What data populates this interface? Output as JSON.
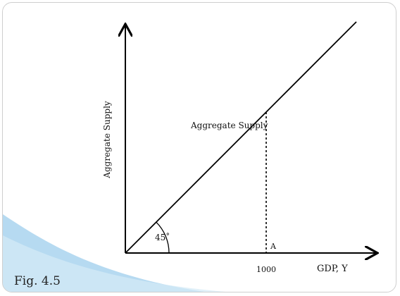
{
  "figure": {
    "label": "Fig. 4.5",
    "accent_color": "#a9d4ee"
  },
  "chart_data": {
    "type": "line",
    "ylabel": "Aggregate Supply",
    "xlabel": "GDP, Y",
    "series": [
      {
        "name": "Aggregate Supply",
        "x": [
          0,
          1640
        ],
        "y": [
          0,
          1640
        ]
      }
    ],
    "angle_label": "45˚",
    "point_label": "A",
    "reference_x": 1000,
    "reference_x_label": "1000",
    "xlim": [
      0,
      1800
    ],
    "ylim": [
      0,
      1800
    ],
    "grid": false,
    "legend": "none"
  }
}
